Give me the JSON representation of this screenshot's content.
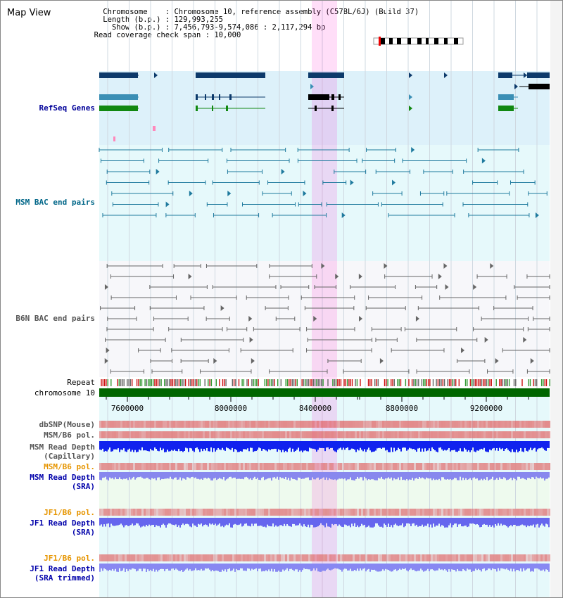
{
  "view_title": "Map View",
  "header": {
    "chromosome_label": "Chromosome",
    "chromosome_value": "Chromosome 10, reference assembly (C57BL/6J) (Build 37)",
    "length_label": "Length (b.p.)",
    "length_value": "129,993,255",
    "show_label": "Show (b.p.)",
    "show_value": "7,456,793-9,574,086 : 2,117,294 bp",
    "coverage_label": "Read coverage check span",
    "coverage_value": "10,000"
  },
  "tracks": {
    "refseq": "RefSeq Genes",
    "msm_bac": "MSM BAC end pairs",
    "b6n_bac": "B6N BAC end pairs",
    "repeat": "Repeat",
    "chromosome": "chromosome 10",
    "dbsnp": "dbSNP(Mouse)",
    "msm_b6_pol_1": "MSM/B6 pol.",
    "msm_depth_cap_1": "MSM Read Depth",
    "msm_depth_cap_2": "(Capillary)",
    "msm_b6_pol_2": "MSM/B6 pol.",
    "msm_depth_sra_1": "MSM Read Depth",
    "msm_depth_sra_2": "(SRA)",
    "jf1_b6_pol_1": "JF1/B6 pol.",
    "jf1_depth_sra_1": "JF1 Read Depth",
    "jf1_depth_sra_2": "(SRA)",
    "jf1_b6_pol_2": "JF1/B6 pol.",
    "jf1_depth_trim_1": "JF1 Read Depth",
    "jf1_depth_trim_2": "(SRA trimmed)"
  },
  "axis": {
    "ticks": [
      "7600000",
      "8000000",
      "8400000",
      "8800000",
      "9200000"
    ]
  },
  "colors": {
    "refseq_label": "#000099",
    "msm_label": "#006688",
    "b6n_label": "#555555",
    "orange_label": "#e69500",
    "blue_label": "#0000aa",
    "highlight": "#ff00cc",
    "refseq_bg": "#ddf1fa",
    "msm_bg": "#e6f9fb",
    "chromosome_bar": "#006600"
  }
}
